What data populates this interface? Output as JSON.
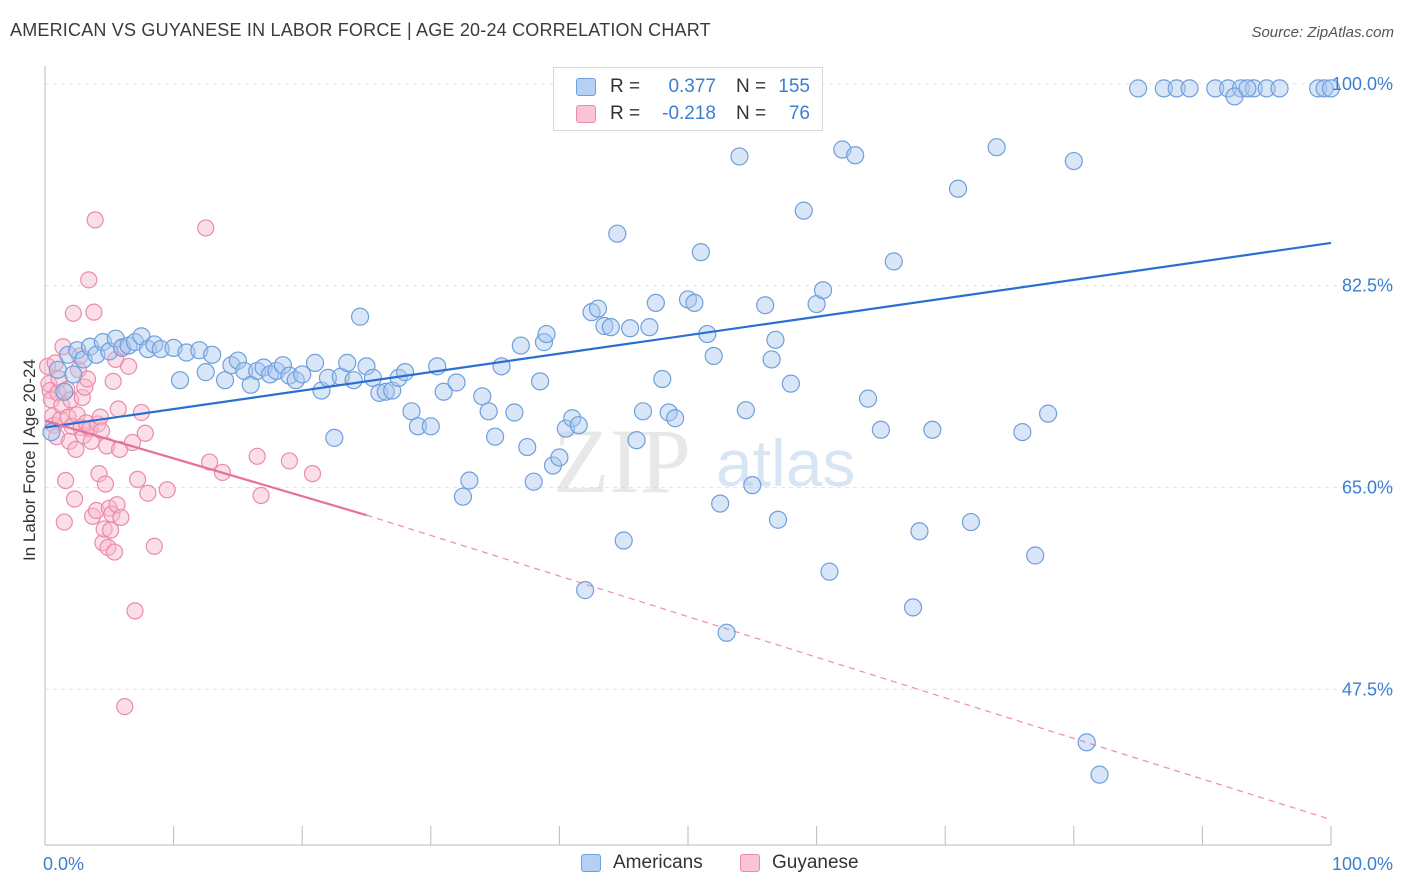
{
  "header": {
    "title": "AMERICAN VS GUYANESE IN LABOR FORCE | AGE 20-24 CORRELATION CHART",
    "source": "Source: ZipAtlas.com"
  },
  "watermark": {
    "zip": "ZIP",
    "atlas": "atlas"
  },
  "legend_top": {
    "rows": [
      {
        "r_label": "R =",
        "r_value": "0.377",
        "n_label": "N =",
        "n_value": "155"
      },
      {
        "r_label": "R =",
        "r_value": "-0.218",
        "n_label": "N =",
        "n_value": "76"
      }
    ]
  },
  "legend_bottom": {
    "americans": "Americans",
    "guyanese": "Guyanese"
  },
  "colors": {
    "americans_fill": "#a9c8ef",
    "americans_stroke": "#6f9fdc",
    "americans_line": "#2a6fcf",
    "guyanese_fill": "#f7b8cb",
    "guyanese_stroke": "#ec8aaa",
    "guyanese_line": "#e8709a",
    "tick_label": "#3b7fd1"
  },
  "chart_data": {
    "type": "scatter",
    "title": "AMERICAN VS GUYANESE IN LABOR FORCE | AGE 20-24 CORRELATION CHART",
    "xlabel": "",
    "ylabel": "In Labor Force | Age 20-24",
    "xlim": [
      0,
      100
    ],
    "ylim": [
      34,
      100.5
    ],
    "x_tick_labels": [
      "0.0%",
      "100.0%"
    ],
    "y_ticks": [
      47.5,
      65.0,
      82.5,
      100.0
    ],
    "y_tick_labels": [
      "47.5%",
      "65.0%",
      "82.5%",
      "100.0%"
    ],
    "grid": "horizontal dashed",
    "legend": "top-center",
    "series": [
      {
        "name": "Americans",
        "r": 0.377,
        "n": 155,
        "trend": {
          "x": [
            0,
            100
          ],
          "y": [
            70.2,
            86.2
          ]
        },
        "points": [
          [
            0.5,
            69.8
          ],
          [
            1.0,
            75.2
          ],
          [
            1.5,
            73.3
          ],
          [
            1.8,
            76.5
          ],
          [
            2.2,
            74.8
          ],
          [
            2.5,
            76.9
          ],
          [
            3.0,
            76.1
          ],
          [
            3.5,
            77.2
          ],
          [
            4.0,
            76.5
          ],
          [
            4.5,
            77.6
          ],
          [
            5.0,
            76.8
          ],
          [
            5.5,
            77.9
          ],
          [
            6.0,
            77.1
          ],
          [
            6.5,
            77.3
          ],
          [
            7.0,
            77.6
          ],
          [
            7.5,
            78.1
          ],
          [
            8.0,
            77.0
          ],
          [
            8.5,
            77.4
          ],
          [
            9.0,
            77.0
          ],
          [
            10.0,
            77.1
          ],
          [
            10.5,
            74.3
          ],
          [
            11.0,
            76.7
          ],
          [
            12.0,
            76.9
          ],
          [
            12.5,
            75.0
          ],
          [
            13.0,
            76.5
          ],
          [
            14.0,
            74.3
          ],
          [
            14.5,
            75.6
          ],
          [
            15.0,
            76.0
          ],
          [
            15.5,
            75.1
          ],
          [
            16.0,
            73.9
          ],
          [
            16.5,
            75.1
          ],
          [
            17.0,
            75.4
          ],
          [
            17.5,
            74.8
          ],
          [
            18.0,
            75.1
          ],
          [
            18.5,
            75.6
          ],
          [
            19.0,
            74.7
          ],
          [
            19.5,
            74.3
          ],
          [
            20.0,
            74.8
          ],
          [
            21.0,
            75.8
          ],
          [
            21.5,
            73.4
          ],
          [
            22.0,
            74.5
          ],
          [
            22.5,
            69.3
          ],
          [
            23.0,
            74.6
          ],
          [
            23.5,
            75.8
          ],
          [
            24.0,
            74.3
          ],
          [
            24.5,
            79.8
          ],
          [
            25.0,
            75.5
          ],
          [
            25.5,
            74.5
          ],
          [
            26.0,
            73.2
          ],
          [
            26.5,
            73.3
          ],
          [
            27.0,
            73.4
          ],
          [
            27.5,
            74.5
          ],
          [
            28.0,
            75.0
          ],
          [
            28.5,
            71.6
          ],
          [
            29.0,
            70.3
          ],
          [
            30.0,
            70.3
          ],
          [
            30.5,
            75.5
          ],
          [
            31.0,
            73.3
          ],
          [
            32.0,
            74.1
          ],
          [
            32.5,
            64.2
          ],
          [
            33.0,
            65.6
          ],
          [
            34.0,
            72.9
          ],
          [
            34.5,
            71.6
          ],
          [
            35.0,
            69.4
          ],
          [
            35.5,
            75.5
          ],
          [
            36.5,
            71.5
          ],
          [
            37.0,
            77.3
          ],
          [
            37.5,
            68.5
          ],
          [
            38.0,
            65.5
          ],
          [
            38.5,
            74.2
          ],
          [
            38.8,
            77.6
          ],
          [
            39.0,
            78.3
          ],
          [
            39.5,
            66.9
          ],
          [
            40.0,
            67.6
          ],
          [
            40.5,
            70.1
          ],
          [
            41.0,
            71.0
          ],
          [
            41.5,
            70.4
          ],
          [
            42.0,
            56.1
          ],
          [
            42.5,
            80.2
          ],
          [
            43.0,
            80.5
          ],
          [
            43.5,
            79.0
          ],
          [
            44.0,
            78.9
          ],
          [
            44.5,
            87.0
          ],
          [
            45.0,
            60.4
          ],
          [
            45.5,
            78.8
          ],
          [
            46.0,
            69.1
          ],
          [
            46.5,
            71.6
          ],
          [
            47.0,
            78.9
          ],
          [
            47.5,
            81.0
          ],
          [
            48.0,
            74.4
          ],
          [
            48.5,
            71.5
          ],
          [
            49.0,
            71.0
          ],
          [
            50.0,
            81.3
          ],
          [
            50.5,
            81.0
          ],
          [
            51.0,
            85.4
          ],
          [
            51.5,
            78.3
          ],
          [
            52.0,
            76.4
          ],
          [
            52.5,
            63.6
          ],
          [
            53.0,
            52.4
          ],
          [
            54.0,
            93.7
          ],
          [
            54.5,
            71.7
          ],
          [
            55.0,
            65.2
          ],
          [
            56.0,
            80.8
          ],
          [
            56.5,
            76.1
          ],
          [
            56.8,
            77.8
          ],
          [
            57.0,
            62.2
          ],
          [
            58.0,
            74.0
          ],
          [
            59.0,
            89.0
          ],
          [
            59.5,
            98.3
          ],
          [
            60.0,
            80.9
          ],
          [
            60.5,
            82.1
          ],
          [
            61.0,
            57.7
          ],
          [
            62.0,
            94.3
          ],
          [
            63.0,
            93.8
          ],
          [
            64.0,
            72.7
          ],
          [
            65.0,
            70.0
          ],
          [
            66.0,
            84.6
          ],
          [
            67.5,
            54.6
          ],
          [
            68.0,
            61.2
          ],
          [
            69.0,
            70.0
          ],
          [
            71.0,
            90.9
          ],
          [
            72.0,
            62.0
          ],
          [
            74.0,
            94.5
          ],
          [
            76.0,
            69.8
          ],
          [
            77.0,
            59.1
          ],
          [
            78.0,
            71.4
          ],
          [
            80.0,
            93.3
          ],
          [
            81.0,
            42.9
          ],
          [
            82.0,
            40.1
          ],
          [
            85.0,
            99.6
          ],
          [
            87.0,
            99.6
          ],
          [
            88.0,
            99.6
          ],
          [
            89.0,
            99.6
          ],
          [
            91.0,
            99.6
          ],
          [
            92.0,
            99.6
          ],
          [
            93.0,
            99.6
          ],
          [
            94.0,
            99.6
          ],
          [
            95.0,
            99.6
          ],
          [
            96.0,
            99.6
          ],
          [
            99.0,
            99.6
          ],
          [
            99.5,
            99.6
          ],
          [
            100.0,
            99.6
          ],
          [
            92.5,
            98.9
          ],
          [
            93.5,
            99.6
          ]
        ]
      },
      {
        "name": "Guyanese",
        "r": -0.218,
        "n": 76,
        "trend": {
          "x": [
            0,
            25,
            100
          ],
          "y": [
            70.8,
            62.6,
            36.2
          ]
        },
        "points": [
          [
            0.2,
            75.5
          ],
          [
            0.3,
            74.0
          ],
          [
            0.4,
            73.4
          ],
          [
            0.5,
            72.6
          ],
          [
            0.6,
            71.2
          ],
          [
            0.7,
            70.4
          ],
          [
            0.8,
            75.8
          ],
          [
            0.9,
            69.4
          ],
          [
            1.0,
            73.2
          ],
          [
            1.1,
            74.4
          ],
          [
            1.2,
            70.9
          ],
          [
            1.3,
            72.1
          ],
          [
            1.4,
            77.2
          ],
          [
            1.5,
            62.0
          ],
          [
            1.6,
            65.6
          ],
          [
            1.7,
            73.5
          ],
          [
            1.8,
            71.1
          ],
          [
            1.9,
            69.0
          ],
          [
            2.0,
            72.6
          ],
          [
            2.1,
            70.3
          ],
          [
            2.2,
            80.1
          ],
          [
            2.3,
            64.0
          ],
          [
            2.4,
            68.3
          ],
          [
            2.5,
            71.3
          ],
          [
            2.6,
            75.2
          ],
          [
            2.7,
            76.4
          ],
          [
            2.8,
            70.2
          ],
          [
            2.9,
            72.8
          ],
          [
            3.0,
            69.5
          ],
          [
            3.1,
            73.7
          ],
          [
            3.2,
            70.6
          ],
          [
            3.3,
            74.4
          ],
          [
            3.4,
            83.0
          ],
          [
            3.5,
            70.1
          ],
          [
            3.6,
            69.0
          ],
          [
            3.7,
            62.5
          ],
          [
            3.8,
            80.2
          ],
          [
            3.9,
            88.2
          ],
          [
            4.0,
            63.0
          ],
          [
            4.1,
            70.5
          ],
          [
            4.2,
            66.2
          ],
          [
            4.3,
            71.1
          ],
          [
            4.4,
            69.9
          ],
          [
            4.5,
            60.2
          ],
          [
            4.6,
            61.4
          ],
          [
            4.7,
            65.3
          ],
          [
            4.8,
            68.6
          ],
          [
            4.9,
            59.8
          ],
          [
            5.0,
            63.2
          ],
          [
            5.1,
            61.3
          ],
          [
            5.2,
            62.7
          ],
          [
            5.3,
            74.2
          ],
          [
            5.4,
            59.4
          ],
          [
            5.5,
            76.1
          ],
          [
            5.6,
            63.5
          ],
          [
            5.7,
            71.8
          ],
          [
            5.8,
            68.3
          ],
          [
            5.9,
            62.4
          ],
          [
            6.0,
            77.2
          ],
          [
            6.2,
            46.0
          ],
          [
            6.5,
            75.5
          ],
          [
            6.8,
            68.9
          ],
          [
            7.0,
            54.3
          ],
          [
            7.2,
            65.7
          ],
          [
            7.5,
            71.5
          ],
          [
            7.8,
            69.7
          ],
          [
            8.0,
            64.5
          ],
          [
            8.5,
            59.9
          ],
          [
            9.5,
            64.8
          ],
          [
            12.5,
            87.5
          ],
          [
            12.8,
            67.2
          ],
          [
            13.8,
            66.3
          ],
          [
            16.5,
            67.7
          ],
          [
            16.8,
            64.3
          ],
          [
            19.0,
            67.3
          ],
          [
            20.8,
            66.2
          ]
        ]
      }
    ]
  }
}
